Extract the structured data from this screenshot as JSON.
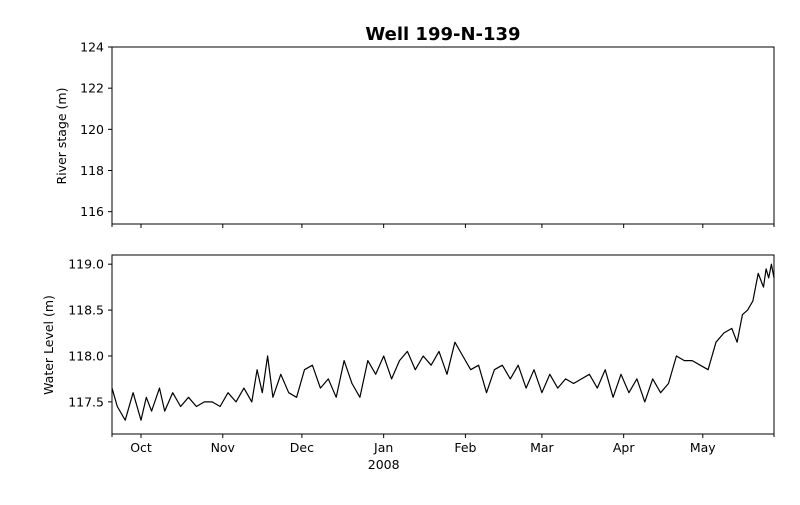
{
  "chart_data": [
    {
      "type": "line",
      "title": "Well 199-N-139",
      "xlabel": "",
      "ylabel": "River stage (m)",
      "ylim": [
        115.4,
        124.0
      ],
      "yticks": [
        116,
        118,
        120,
        122,
        124
      ],
      "xlim": [
        "2007-09-20",
        "2008-05-28"
      ],
      "grid": false,
      "series": []
    },
    {
      "type": "line",
      "xlabel": "",
      "ylabel": "Water Level (m)",
      "ylim": [
        117.15,
        119.1
      ],
      "yticks": [
        "117.5",
        "118.0",
        "118.5",
        "119.0"
      ],
      "xlim": [
        "2007-09-20",
        "2008-05-28"
      ],
      "xticks": [
        {
          "date": "2007-10-01",
          "label": "Oct",
          "sublabel": ""
        },
        {
          "date": "2007-11-01",
          "label": "Nov",
          "sublabel": ""
        },
        {
          "date": "2007-12-01",
          "label": "Dec",
          "sublabel": ""
        },
        {
          "date": "2008-01-01",
          "label": "Jan",
          "sublabel": "2008"
        },
        {
          "date": "2008-02-01",
          "label": "Feb",
          "sublabel": ""
        },
        {
          "date": "2008-03-01",
          "label": "Mar",
          "sublabel": ""
        },
        {
          "date": "2008-04-01",
          "label": "Apr",
          "sublabel": ""
        },
        {
          "date": "2008-05-01",
          "label": "May",
          "sublabel": ""
        }
      ],
      "grid": false,
      "series": [
        {
          "x": [
            "2007-09-20",
            "2007-09-22",
            "2007-09-25",
            "2007-09-28",
            "2007-10-01",
            "2007-10-03",
            "2007-10-05",
            "2007-10-08",
            "2007-10-10",
            "2007-10-13",
            "2007-10-16",
            "2007-10-19",
            "2007-10-22",
            "2007-10-25",
            "2007-10-28",
            "2007-10-31",
            "2007-11-03",
            "2007-11-06",
            "2007-11-09",
            "2007-11-12",
            "2007-11-14",
            "2007-11-16",
            "2007-11-18",
            "2007-11-20",
            "2007-11-23",
            "2007-11-26",
            "2007-11-29",
            "2007-12-02",
            "2007-12-05",
            "2007-12-08",
            "2007-12-11",
            "2007-12-14",
            "2007-12-17",
            "2007-12-20",
            "2007-12-23",
            "2007-12-26",
            "2007-12-29",
            "2008-01-01",
            "2008-01-04",
            "2008-01-07",
            "2008-01-10",
            "2008-01-13",
            "2008-01-16",
            "2008-01-19",
            "2008-01-22",
            "2008-01-25",
            "2008-01-28",
            "2008-01-31",
            "2008-02-03",
            "2008-02-06",
            "2008-02-09",
            "2008-02-12",
            "2008-02-15",
            "2008-02-18",
            "2008-02-21",
            "2008-02-24",
            "2008-02-27",
            "2008-03-01",
            "2008-03-04",
            "2008-03-07",
            "2008-03-10",
            "2008-03-13",
            "2008-03-16",
            "2008-03-19",
            "2008-03-22",
            "2008-03-25",
            "2008-03-28",
            "2008-03-31",
            "2008-04-03",
            "2008-04-06",
            "2008-04-09",
            "2008-04-12",
            "2008-04-15",
            "2008-04-18",
            "2008-04-21",
            "2008-04-24",
            "2008-04-27",
            "2008-04-30",
            "2008-05-03",
            "2008-05-06",
            "2008-05-09",
            "2008-05-12",
            "2008-05-14",
            "2008-05-16",
            "2008-05-18",
            "2008-05-20",
            "2008-05-22",
            "2008-05-24",
            "2008-05-25",
            "2008-05-26",
            "2008-05-27",
            "2008-05-28"
          ],
          "y": [
            117.65,
            117.45,
            117.3,
            117.6,
            117.3,
            117.55,
            117.4,
            117.65,
            117.4,
            117.6,
            117.45,
            117.55,
            117.45,
            117.5,
            117.5,
            117.45,
            117.6,
            117.5,
            117.65,
            117.5,
            117.85,
            117.6,
            118.0,
            117.55,
            117.8,
            117.6,
            117.55,
            117.85,
            117.9,
            117.65,
            117.75,
            117.55,
            117.95,
            117.7,
            117.55,
            117.95,
            117.8,
            118.0,
            117.75,
            117.95,
            118.05,
            117.85,
            118.0,
            117.9,
            118.05,
            117.8,
            118.15,
            118.0,
            117.85,
            117.9,
            117.6,
            117.85,
            117.9,
            117.75,
            117.9,
            117.65,
            117.85,
            117.6,
            117.8,
            117.65,
            117.75,
            117.7,
            117.75,
            117.8,
            117.65,
            117.85,
            117.55,
            117.8,
            117.6,
            117.75,
            117.5,
            117.75,
            117.6,
            117.7,
            118.0,
            117.95,
            117.95,
            117.9,
            117.85,
            118.15,
            118.25,
            118.3,
            118.15,
            118.45,
            118.5,
            118.6,
            118.9,
            118.75,
            118.95,
            118.85,
            119.0,
            118.85
          ]
        }
      ]
    }
  ]
}
